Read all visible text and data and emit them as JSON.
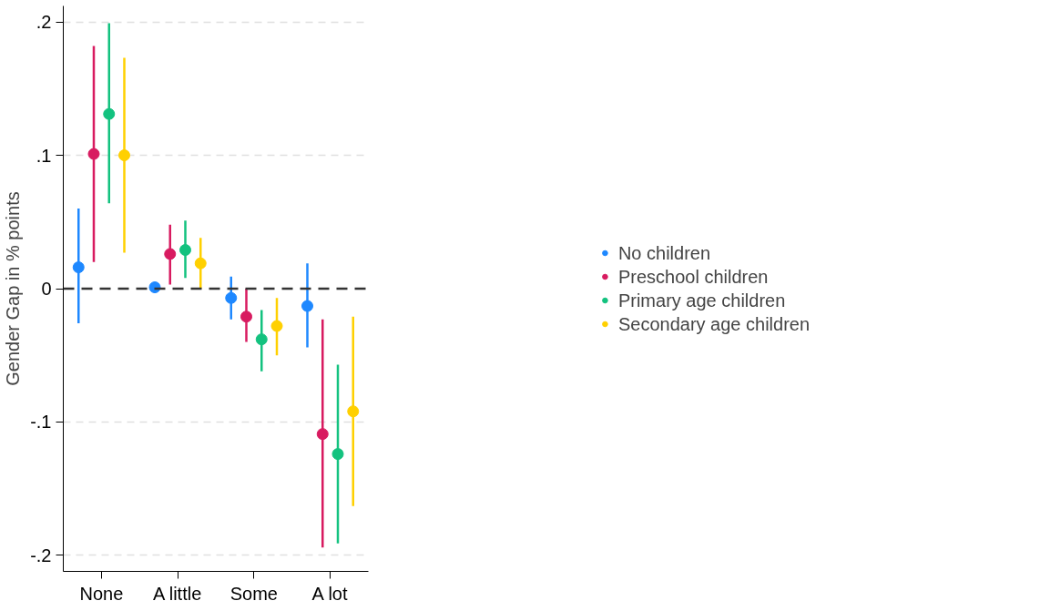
{
  "chart_data": {
    "type": "scatter",
    "ylabel": "Gender Gap in % points",
    "categories": [
      "None",
      "A little",
      "Some",
      "A lot"
    ],
    "series": [
      {
        "name": "No children",
        "color": "#1e88ff",
        "values": [
          0.016,
          0.001,
          -0.007,
          -0.013
        ],
        "errors": [
          [
            -0.026,
            0.06
          ],
          null,
          [
            -0.023,
            0.009
          ],
          [
            -0.044,
            0.019
          ]
        ]
      },
      {
        "name": "Preschool children",
        "color": "#d81b60",
        "values": [
          0.101,
          0.026,
          -0.021,
          -0.109
        ],
        "errors": [
          [
            0.02,
            0.182
          ],
          [
            0.003,
            0.048
          ],
          [
            -0.04,
            0.0
          ],
          [
            -0.194,
            -0.023
          ]
        ]
      },
      {
        "name": "Primary age children",
        "color": "#13c27f",
        "values": [
          0.131,
          0.029,
          -0.038,
          -0.124
        ],
        "errors": [
          [
            0.064,
            0.199
          ],
          [
            0.008,
            0.051
          ],
          [
            -0.062,
            -0.016
          ],
          [
            -0.191,
            -0.057
          ]
        ]
      },
      {
        "name": "Secondary age children",
        "color": "#ffd000",
        "values": [
          0.1,
          0.019,
          -0.028,
          -0.092
        ],
        "errors": [
          [
            0.027,
            0.173
          ],
          [
            0.0,
            0.038
          ],
          [
            -0.05,
            -0.007
          ],
          [
            -0.163,
            -0.021
          ]
        ]
      }
    ],
    "ylim": [
      -0.212,
      0.212
    ],
    "yticks": [
      {
        "value": -0.2,
        "label": "-.2"
      },
      {
        "value": -0.1,
        "label": "-.1"
      },
      0,
      {
        "value": 0.1,
        "label": ".1"
      },
      {
        "value": 0.2,
        "label": ".2"
      }
    ],
    "ref_lines": [
      {
        "axis": "y",
        "value": 0,
        "color": "#333333",
        "line_style": "dashed"
      }
    ],
    "grid": "y",
    "legend": "right",
    "marker": "circle"
  }
}
